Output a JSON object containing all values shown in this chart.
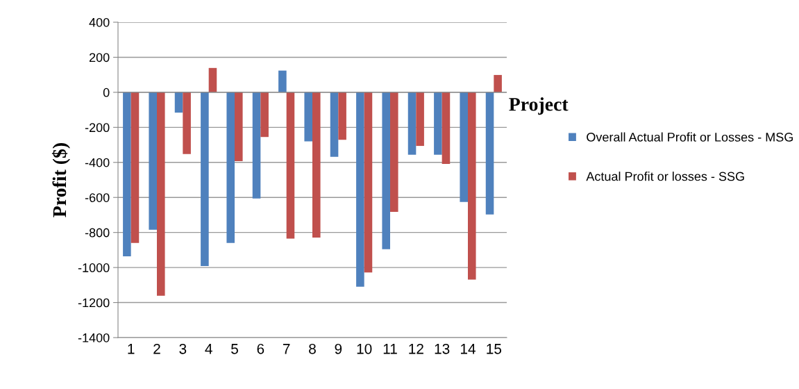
{
  "chart_data": {
    "type": "bar",
    "xlabel": "Project",
    "ylabel": "Profit ($)",
    "categories": [
      "1",
      "2",
      "3",
      "4",
      "5",
      "6",
      "7",
      "8",
      "9",
      "10",
      "11",
      "12",
      "13",
      "14",
      "15"
    ],
    "series": [
      {
        "name": "Overall Actual Profit or Losses - MSG",
        "color": "#4f81bd",
        "values": [
          -936,
          -784,
          -116,
          -992,
          -860,
          -606,
          124,
          -280,
          -368,
          -1110,
          -895,
          -356,
          -356,
          -626,
          -697
        ]
      },
      {
        "name": "Actual Profit or losses - SSG",
        "color": "#c0504d",
        "values": [
          -860,
          -1161,
          -352,
          139,
          -393,
          -255,
          -835,
          -829,
          -271,
          -1028,
          -682,
          -306,
          -409,
          -1069,
          99
        ]
      }
    ],
    "ylim": [
      -1400,
      400
    ],
    "yticks": [
      -1400,
      -1200,
      -1000,
      -800,
      -600,
      -400,
      -200,
      0,
      200,
      400
    ],
    "grid": "y",
    "legend": "right"
  }
}
